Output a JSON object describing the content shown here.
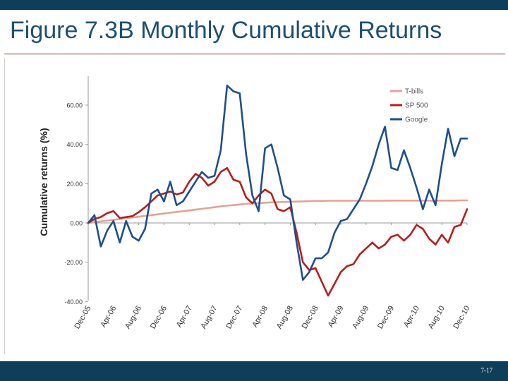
{
  "slide": {
    "title": "Figure 7.3B Monthly Cumulative Returns",
    "page_number": "7-17",
    "colors": {
      "header_bar": "#0f3e5a",
      "title": "#1d4f73"
    }
  },
  "chart_data": {
    "type": "line",
    "title": "",
    "xlabel": "",
    "ylabel": "Cumulative returns (%)",
    "ylim": [
      -40,
      75
    ],
    "yticks": [
      -40,
      -20,
      0,
      20,
      40,
      60
    ],
    "ytick_labels": [
      "-40.00",
      "-20.00",
      "0.00",
      "20.00",
      "40.00",
      "60.00"
    ],
    "x_tick_labels": [
      "Dec-05",
      "Apr-06",
      "Aug-06",
      "Dec-06",
      "Apr-07",
      "Aug-07",
      "Dec-07",
      "Apr-08",
      "Aug-08",
      "Dec-08",
      "Apr-09",
      "Aug-09",
      "Dec-09",
      "Apr-10",
      "Aug-10",
      "Dec-10"
    ],
    "x_tick_index": [
      0,
      4,
      8,
      12,
      16,
      20,
      24,
      28,
      32,
      36,
      40,
      44,
      48,
      52,
      56,
      60
    ],
    "x": [
      "Dec-05",
      "Jan-06",
      "Feb-06",
      "Mar-06",
      "Apr-06",
      "May-06",
      "Jun-06",
      "Jul-06",
      "Aug-06",
      "Sep-06",
      "Oct-06",
      "Nov-06",
      "Dec-06",
      "Jan-07",
      "Feb-07",
      "Mar-07",
      "Apr-07",
      "May-07",
      "Jun-07",
      "Jul-07",
      "Aug-07",
      "Sep-07",
      "Oct-07",
      "Nov-07",
      "Dec-07",
      "Jan-08",
      "Feb-08",
      "Mar-08",
      "Apr-08",
      "May-08",
      "Jun-08",
      "Jul-08",
      "Aug-08",
      "Sep-08",
      "Oct-08",
      "Nov-08",
      "Dec-08",
      "Jan-09",
      "Feb-09",
      "Mar-09",
      "Apr-09",
      "May-09",
      "Jun-09",
      "Jul-09",
      "Aug-09",
      "Sep-09",
      "Oct-09",
      "Nov-09",
      "Dec-09",
      "Jan-10",
      "Feb-10",
      "Mar-10",
      "Apr-10",
      "May-10",
      "Jun-10",
      "Jul-10",
      "Aug-10",
      "Sep-10",
      "Oct-10",
      "Nov-10",
      "Dec-10"
    ],
    "grid": false,
    "legend_position": "top-right",
    "series": [
      {
        "name": "T-bills",
        "color": "#e3a396",
        "values": [
          0.0,
          0.4,
          0.8,
          1.2,
          1.6,
          2.0,
          2.4,
          2.8,
          3.2,
          3.6,
          4.0,
          4.4,
          4.8,
          5.2,
          5.6,
          6.0,
          6.4,
          6.8,
          7.2,
          7.6,
          8.0,
          8.4,
          8.8,
          9.1,
          9.4,
          9.7,
          9.9,
          10.1,
          10.3,
          10.5,
          10.6,
          10.7,
          10.8,
          10.9,
          11.0,
          11.1,
          11.2,
          11.2,
          11.3,
          11.3,
          11.3,
          11.3,
          11.3,
          11.3,
          11.3,
          11.3,
          11.3,
          11.3,
          11.4,
          11.4,
          11.4,
          11.4,
          11.4,
          11.4,
          11.4,
          11.4,
          11.4,
          11.4,
          11.4,
          11.5,
          11.5
        ]
      },
      {
        "name": "SP 500",
        "color": "#b81c1c",
        "values": [
          0.0,
          2.0,
          3.0,
          5.0,
          6.0,
          2.5,
          3.0,
          3.5,
          5.5,
          8.0,
          11.0,
          14.0,
          15.0,
          16.0,
          14.5,
          15.5,
          21.0,
          25.0,
          23.0,
          19.0,
          21.0,
          26.0,
          28.0,
          22.0,
          21.0,
          13.0,
          10.0,
          14.0,
          17.0,
          15.0,
          7.0,
          6.0,
          8.0,
          -5.0,
          -20.0,
          -24.0,
          -23.0,
          -30.0,
          -37.0,
          -31.0,
          -25.0,
          -22.0,
          -21.0,
          -16.0,
          -13.0,
          -10.0,
          -13.0,
          -11.0,
          -7.0,
          -6.0,
          -9.0,
          -6.0,
          -1.0,
          -3.0,
          -8.0,
          -11.0,
          -6.0,
          -10.0,
          -2.0,
          -1.0,
          7.0
        ]
      },
      {
        "name": "Google",
        "color": "#1f4e8c",
        "values": [
          0.0,
          4.0,
          -12.0,
          -4.0,
          1.0,
          -10.0,
          1.0,
          -7.0,
          -9.0,
          -3.0,
          15.0,
          17.0,
          11.0,
          21.0,
          9.0,
          11.0,
          16.0,
          21.0,
          26.0,
          23.0,
          24.0,
          37.0,
          70.0,
          67.0,
          66.0,
          35.0,
          14.0,
          6.0,
          38.0,
          40.0,
          28.0,
          14.0,
          12.0,
          -10.0,
          -29.0,
          -25.0,
          -18.0,
          -18.0,
          -15.0,
          -5.0,
          1.0,
          2.0,
          7.0,
          12.0,
          20.0,
          29.0,
          40.0,
          49.0,
          28.0,
          27.0,
          37.0,
          28.0,
          18.0,
          7.0,
          17.0,
          9.0,
          30.0,
          48.0,
          34.0,
          43.0,
          43.0
        ]
      }
    ]
  }
}
